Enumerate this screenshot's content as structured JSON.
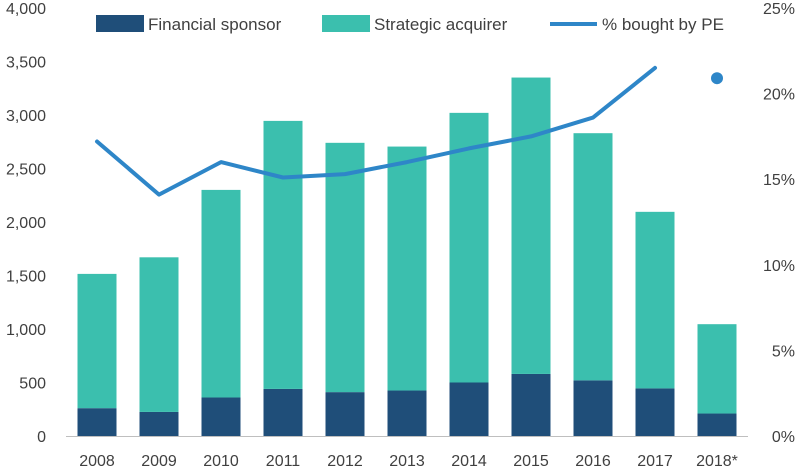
{
  "chart_data": {
    "type": "bar",
    "stacked": true,
    "categories": [
      "2008",
      "2009",
      "2010",
      "2011",
      "2012",
      "2013",
      "2014",
      "2015",
      "2016",
      "2017",
      "2018*"
    ],
    "series": [
      {
        "name": "Financial sponsor",
        "type": "bar",
        "axis": "left",
        "color": "#1f4e79",
        "values": [
          260,
          225,
          360,
          440,
          410,
          425,
          500,
          580,
          520,
          445,
          210
        ]
      },
      {
        "name": "Strategic acquirer",
        "type": "bar",
        "axis": "left",
        "color": "#3bbfae",
        "values": [
          1255,
          1445,
          1940,
          2505,
          2330,
          2280,
          2520,
          2770,
          2310,
          1650,
          835
        ]
      },
      {
        "name": "% bought by PE",
        "type": "line",
        "axis": "right",
        "color": "#2e86c8",
        "values": [
          17.2,
          14.1,
          16.0,
          15.1,
          15.3,
          16.0,
          16.8,
          17.5,
          18.6,
          21.5,
          null
        ],
        "marker_point": {
          "category": "2018*",
          "value": 20.9
        }
      }
    ],
    "y_left": {
      "ylim": [
        0,
        4000
      ],
      "ticks": [
        0,
        500,
        1000,
        1500,
        2000,
        2500,
        3000,
        3500,
        4000
      ],
      "tick_labels": [
        "0",
        "500",
        "1,000",
        "1,500",
        "2,000",
        "2,500",
        "3,000",
        "3,500",
        "4,000"
      ]
    },
    "y_right": {
      "ylim": [
        0,
        25
      ],
      "ticks": [
        0,
        5,
        10,
        15,
        20,
        25
      ],
      "tick_labels": [
        "0%",
        "5%",
        "10%",
        "15%",
        "20%",
        "25%"
      ]
    },
    "legend": {
      "position": "top",
      "entries": [
        "Financial sponsor",
        "Strategic acquirer",
        "% bought by PE"
      ]
    },
    "title": "",
    "xlabel": "",
    "ylabel": "",
    "grid": false
  }
}
